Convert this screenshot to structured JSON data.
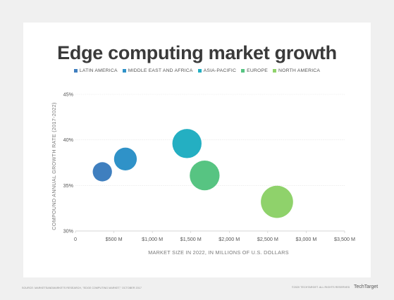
{
  "title": "Edge computing market growth",
  "colors": {
    "latin_america": "#3f7fbf",
    "middle_east_africa": "#2f92c8",
    "asia_pacific": "#24afc2",
    "europe": "#57c482",
    "north_america": "#8fd26b"
  },
  "chart_data": {
    "type": "scatter",
    "title": "Edge computing market growth",
    "xlabel": "MARKET SIZE IN 2022, IN MILLIONS OF U.S. DOLLARS",
    "ylabel": "COMPOUND ANNUAL GROWTH RATE (2017-2022)",
    "xlim": [
      0,
      3500
    ],
    "ylim": [
      30,
      45
    ],
    "x_ticks": [
      "0",
      "$500 M",
      "$1,000 M",
      "$1,500 M",
      "$2,000 M",
      "$2,500 M",
      "$3,000 M",
      "$3,500 M"
    ],
    "y_ticks": [
      "30%",
      "35%",
      "40%",
      "45%"
    ],
    "grid": "horizontal",
    "legend_position": "top",
    "series": [
      {
        "name": "LATIN AMERICA",
        "x": 350,
        "y": 36.5,
        "color": "#3f7fbf"
      },
      {
        "name": "MIDDLE EAST AND AFRICA",
        "x": 650,
        "y": 37.9,
        "color": "#2f92c8"
      },
      {
        "name": "ASIA-PACIFIC",
        "x": 1450,
        "y": 39.6,
        "color": "#24afc2"
      },
      {
        "name": "EUROPE",
        "x": 1680,
        "y": 36.1,
        "color": "#57c482"
      },
      {
        "name": "NORTH AMERICA",
        "x": 2620,
        "y": 33.2,
        "color": "#8fd26b"
      }
    ],
    "bubble_sizes": [
      1,
      1.4,
      2.3,
      2.4,
      2.8
    ]
  },
  "footer": {
    "source": "SOURCE: MARKETSANDMARKETS RESEARCH, \"EDGE COMPUTING MARKET,\" OCTOBER 2017",
    "copyright": "©2020 TECHTARGET. ALL RIGHTS RESERVED",
    "logo": "TechTarget"
  }
}
